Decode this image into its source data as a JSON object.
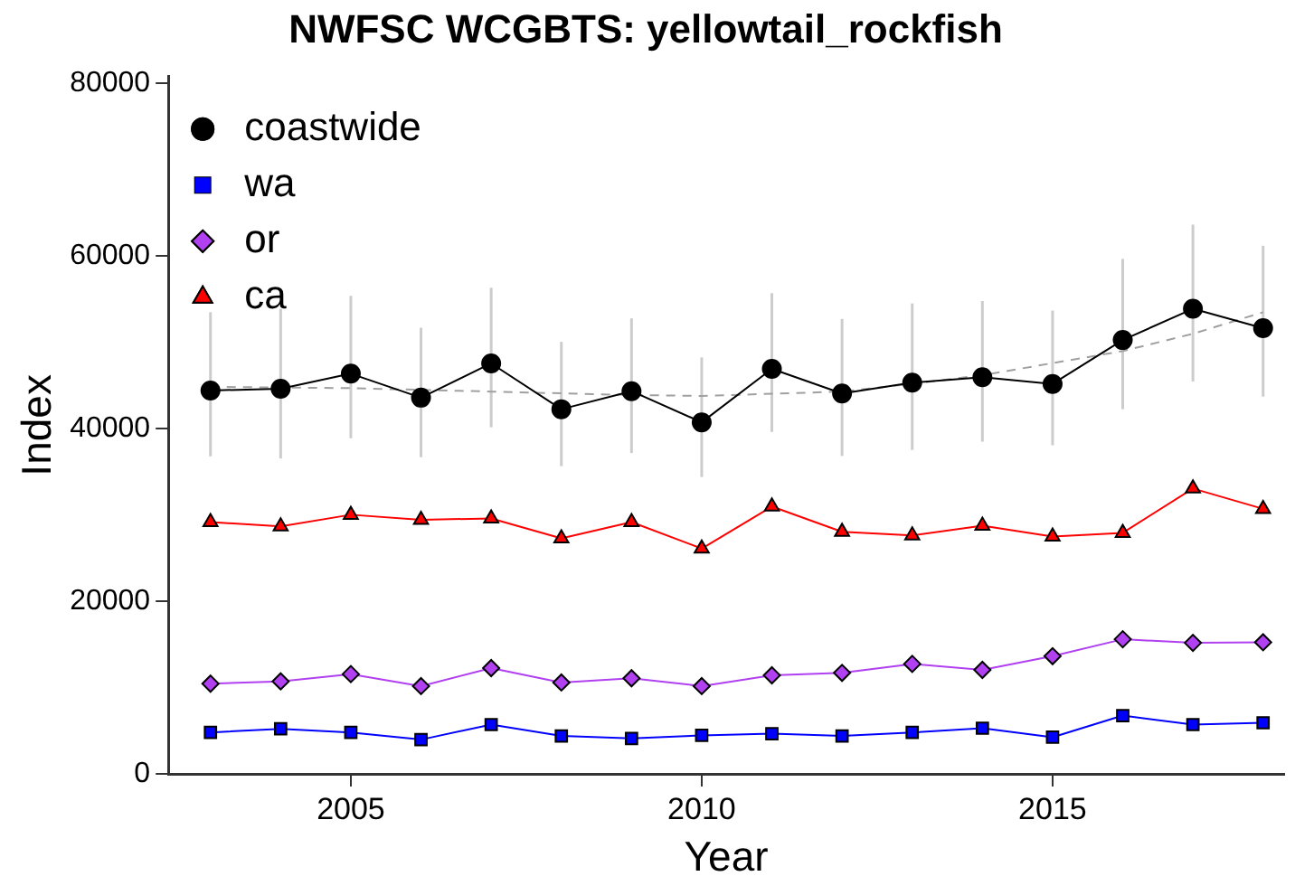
{
  "chart_data": {
    "type": "line",
    "title": "NWFSC WCGBTS: yellowtail_rockfish",
    "xlabel": "Year",
    "ylabel": "Index",
    "x": [
      2003,
      2004,
      2005,
      2006,
      2007,
      2008,
      2009,
      2010,
      2011,
      2012,
      2013,
      2014,
      2015,
      2016,
      2017,
      2018
    ],
    "xlim": [
      2002.4,
      2018.3
    ],
    "xticks": [
      2005,
      2010,
      2015
    ],
    "ylim": [
      0,
      80800
    ],
    "yticks": [
      0,
      20000,
      40000,
      60000,
      80000
    ],
    "legend": "top left",
    "grid": false,
    "series": [
      {
        "name": "coastwide",
        "color": "#000000",
        "marker": "circle",
        "values": [
          44430,
          44640,
          46380,
          43600,
          47570,
          42260,
          44350,
          40740,
          46940,
          44080,
          45330,
          45960,
          45190,
          50280,
          53900,
          51660
        ],
        "errors": [
          [
            36800,
            53500
          ],
          [
            36550,
            53900
          ],
          [
            38900,
            55400
          ],
          [
            36700,
            51700
          ],
          [
            40170,
            56340
          ],
          [
            35660,
            50070
          ],
          [
            37180,
            52790
          ],
          [
            34400,
            48260
          ],
          [
            39630,
            55710
          ],
          [
            36840,
            52720
          ],
          [
            37540,
            54520
          ],
          [
            38500,
            54800
          ],
          [
            38080,
            53690
          ],
          [
            42260,
            59680
          ],
          [
            45470,
            63650
          ],
          [
            43720,
            61200
          ]
        ]
      },
      {
        "name": "wa",
        "color": "#0000ff",
        "marker": "square",
        "values": [
          4800,
          5220,
          4800,
          3970,
          5710,
          4390,
          4110,
          4460,
          4660,
          4390,
          4800,
          5290,
          4250,
          6750,
          5710,
          5920
        ]
      },
      {
        "name": "or",
        "color": "#b040f0",
        "marker": "diamond",
        "values": [
          10450,
          10720,
          11560,
          10170,
          12260,
          10590,
          11080,
          10170,
          11420,
          11700,
          12740,
          12050,
          13640,
          15600,
          15180,
          15250
        ]
      },
      {
        "name": "ca",
        "color": "#ff0000",
        "marker": "triangle",
        "values": [
          29180,
          28690,
          30030,
          29450,
          29600,
          27300,
          29180,
          26110,
          30980,
          28050,
          27640,
          28760,
          27510,
          27930,
          33070,
          30710
        ]
      },
      {
        "type": "line",
        "color": "#a0a0a0",
        "marker": "none",
        "line_style": "dashed",
        "x": [
          2003,
          2005,
          2007,
          2009,
          2010,
          2012,
          2013,
          2014,
          2015,
          2016,
          2017,
          2018
        ],
        "values": [
          44850,
          44700,
          44300,
          43900,
          43800,
          44300,
          45200,
          46200,
          47600,
          49000,
          51000,
          53500
        ]
      }
    ]
  }
}
